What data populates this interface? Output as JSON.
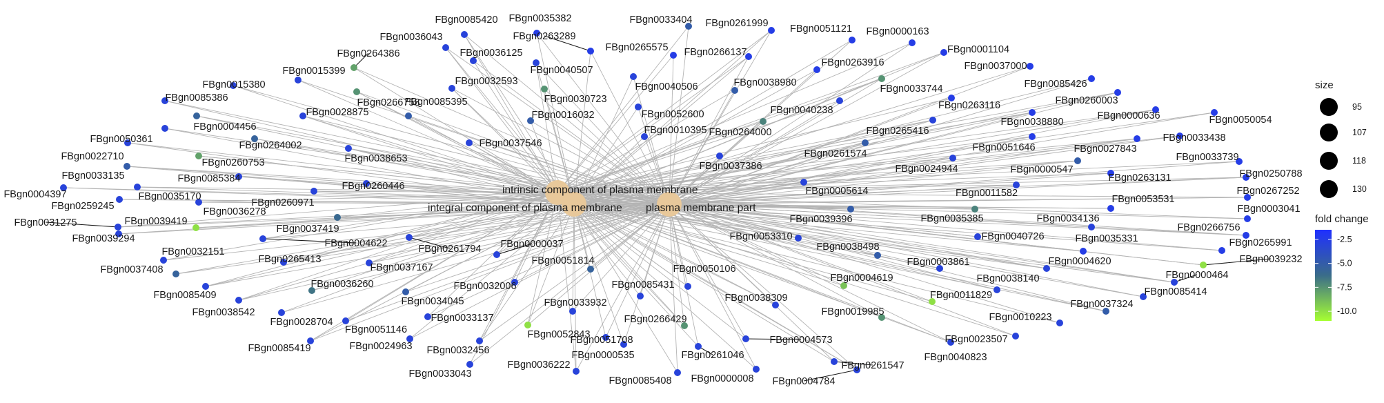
{
  "hubs": [
    {
      "id": "H1",
      "label": "intrinsic component of plasma membrane"
    },
    {
      "id": "H2",
      "label": "integral component of plasma membrane"
    },
    {
      "id": "H3",
      "label": "plasma membrane part"
    }
  ],
  "genes": [
    {
      "id": "g01",
      "label": "FBgn0085420",
      "fold_change": -3.0
    },
    {
      "id": "g02",
      "label": "FBgn0035382",
      "fold_change": -2.5
    },
    {
      "id": "g03",
      "label": "FBgn0033404",
      "fold_change": -5.0
    },
    {
      "id": "g04",
      "label": "FBgn0261999",
      "fold_change": -2.5
    },
    {
      "id": "g05",
      "label": "FBgn0051121",
      "fold_change": -2.5
    },
    {
      "id": "g06",
      "label": "FBgn0000163",
      "fold_change": -2.5
    },
    {
      "id": "g07",
      "label": "FBgn0036043",
      "fold_change": -3.0
    },
    {
      "id": "g08",
      "label": "FBgn0263289",
      "fold_change": -2.5
    },
    {
      "id": "g09",
      "label": "FBgn0265575",
      "fold_change": -2.5
    },
    {
      "id": "g10",
      "label": "FBgn0001104",
      "fold_change": -2.5
    },
    {
      "id": "g11",
      "label": "FBgn0264386",
      "fold_change": -8.0
    },
    {
      "id": "g12",
      "label": "FBgn0036125",
      "fold_change": -3.0
    },
    {
      "id": "g13",
      "label": "FBgn0266137",
      "fold_change": -2.5
    },
    {
      "id": "g14",
      "label": "FBgn0037000",
      "fold_change": -2.5
    },
    {
      "id": "g15",
      "label": "FBgn0015399",
      "fold_change": -3.0
    },
    {
      "id": "g16",
      "label": "FBgn0040507",
      "fold_change": -3.0
    },
    {
      "id": "g17",
      "label": "FBgn0263916",
      "fold_change": -2.5
    },
    {
      "id": "g18",
      "label": "FBgn0015380",
      "fold_change": -3.0
    },
    {
      "id": "g19",
      "label": "FBgn0032593",
      "fold_change": -3.0
    },
    {
      "id": "g20",
      "label": "FBgn0040506",
      "fold_change": -3.0
    },
    {
      "id": "g21",
      "label": "FBgn0038980",
      "fold_change": -5.0
    },
    {
      "id": "g22",
      "label": "FBgn0033744",
      "fold_change": -7.5
    },
    {
      "id": "g23",
      "label": "FBgn0085426",
      "fold_change": -2.5
    },
    {
      "id": "g24",
      "label": "FBgn0085386",
      "fold_change": -3.0
    },
    {
      "id": "g25",
      "label": "FBgn0266758",
      "fold_change": -7.5
    },
    {
      "id": "g26",
      "label": "FBgn0030723",
      "fold_change": -7.5
    },
    {
      "id": "g27",
      "label": "FBgn0263116",
      "fold_change": -2.5
    },
    {
      "id": "g28",
      "label": "FBgn0260003",
      "fold_change": -2.5
    },
    {
      "id": "g29",
      "label": "FBgn0052600",
      "fold_change": -3.0
    },
    {
      "id": "g30",
      "label": "FBgn0040238",
      "fold_change": -3.0
    },
    {
      "id": "g31",
      "label": "FBgn0000636",
      "fold_change": -2.5
    },
    {
      "id": "g32",
      "label": "FBgn0050054",
      "fold_change": -2.5
    },
    {
      "id": "g33",
      "label": "FBgn0004456",
      "fold_change": -5.5
    },
    {
      "id": "g34",
      "label": "FBgn0028875",
      "fold_change": -3.0
    },
    {
      "id": "g35",
      "label": "FBgn0085395",
      "fold_change": -5.0
    },
    {
      "id": "g36",
      "label": "FBgn0016032",
      "fold_change": -5.0
    },
    {
      "id": "g37",
      "label": "FBgn0038880",
      "fold_change": -2.5
    },
    {
      "id": "g38",
      "label": "FBgn0010395",
      "fold_change": -3.0
    },
    {
      "id": "g39",
      "label": "FBgn0264000",
      "fold_change": -7.0
    },
    {
      "id": "g40",
      "label": "FBgn0265416",
      "fold_change": -3.0
    },
    {
      "id": "g41",
      "label": "FBgn0050361",
      "fold_change": -3.0
    },
    {
      "id": "g42",
      "label": "FBgn0264002",
      "fold_change": -5.5
    },
    {
      "id": "g43",
      "label": "FBgn0037546",
      "fold_change": -3.0
    },
    {
      "id": "g44",
      "label": "FBgn0033438",
      "fold_change": -2.5
    },
    {
      "id": "g45",
      "label": "FBgn0051646",
      "fold_change": -2.5
    },
    {
      "id": "g46",
      "label": "FBgn0027843",
      "fold_change": -2.5
    },
    {
      "id": "g47",
      "label": "FBgn0022710",
      "fold_change": -3.0
    },
    {
      "id": "g48",
      "label": "FBgn0260753",
      "fold_change": -8.0
    },
    {
      "id": "g49",
      "label": "FBgn0038653",
      "fold_change": -3.0
    },
    {
      "id": "g50",
      "label": "FBgn0261574",
      "fold_change": -5.0
    },
    {
      "id": "g51",
      "label": "FBgn0033739",
      "fold_change": -2.5
    },
    {
      "id": "g52",
      "label": "FBgn0033135",
      "fold_change": -5.0
    },
    {
      "id": "g53",
      "label": "FBgn0037386",
      "fold_change": -3.0
    },
    {
      "id": "g54",
      "label": "FBgn0024944",
      "fold_change": -3.0
    },
    {
      "id": "g55",
      "label": "FBgn0000547",
      "fold_change": -5.0
    },
    {
      "id": "g56",
      "label": "FBgn0085384",
      "fold_change": -3.0
    },
    {
      "id": "g57",
      "label": "FBgn0263131",
      "fold_change": -2.5
    },
    {
      "id": "g58",
      "label": "FBgn0250788",
      "fold_change": -2.5
    },
    {
      "id": "g59",
      "label": "FBgn0004397",
      "fold_change": -3.0
    },
    {
      "id": "g60",
      "label": "FBgn0035170",
      "fold_change": -3.0
    },
    {
      "id": "g61",
      "label": "FBgn0260446",
      "fold_change": -3.0
    },
    {
      "id": "g62",
      "label": "FBgn0005614",
      "fold_change": -3.0
    },
    {
      "id": "g63",
      "label": "FBgn0011582",
      "fold_change": -3.0
    },
    {
      "id": "g64",
      "label": "FBgn0267252",
      "fold_change": -2.5
    },
    {
      "id": "g65",
      "label": "FBgn0259245",
      "fold_change": -3.0
    },
    {
      "id": "g66",
      "label": "FBgn0260971",
      "fold_change": -3.0
    },
    {
      "id": "g67",
      "label": "FBgn0036278",
      "fold_change": -3.0
    },
    {
      "id": "g68",
      "label": "FBgn0053531",
      "fold_change": -2.5
    },
    {
      "id": "g69",
      "label": "FBgn0003041",
      "fold_change": -2.5
    },
    {
      "id": "g70",
      "label": "FBgn0031275",
      "fold_change": -3.0
    },
    {
      "id": "g71",
      "label": "FBgn0039419",
      "fold_change": -10.0
    },
    {
      "id": "g72",
      "label": "FBgn0037419",
      "fold_change": -6.0
    },
    {
      "id": "g73",
      "label": "FBgn0039396",
      "fold_change": -5.0
    },
    {
      "id": "g74",
      "label": "FBgn0035385",
      "fold_change": -7.0
    },
    {
      "id": "g75",
      "label": "FBgn0034136",
      "fold_change": -3.0
    },
    {
      "id": "g76",
      "label": "FBgn0266756",
      "fold_change": -2.5
    },
    {
      "id": "g77",
      "label": "FBgn0039294",
      "fold_change": -3.0
    },
    {
      "id": "g78",
      "label": "FBgn0004622",
      "fold_change": -3.0
    },
    {
      "id": "g79",
      "label": "FBgn0261794",
      "fold_change": -3.0
    },
    {
      "id": "g80",
      "label": "FBgn0053310",
      "fold_change": -3.0
    },
    {
      "id": "g81",
      "label": "FBgn0040726",
      "fold_change": -3.0
    },
    {
      "id": "g82",
      "label": "FBgn0035331",
      "fold_change": -2.5
    },
    {
      "id": "g83",
      "label": "FBgn0265991",
      "fold_change": -2.5
    },
    {
      "id": "g84",
      "label": "FBgn0032151",
      "fold_change": -3.0
    },
    {
      "id": "g85",
      "label": "FBgn0000037",
      "fold_change": -3.0
    },
    {
      "id": "g86",
      "label": "FBgn0038498",
      "fold_change": -5.0
    },
    {
      "id": "g87",
      "label": "FBgn0039232",
      "fold_change": -10.0
    },
    {
      "id": "g88",
      "label": "FBgn0265413",
      "fold_change": -3.0
    },
    {
      "id": "g89",
      "label": "FBgn0051814",
      "fold_change": -5.5
    },
    {
      "id": "g90",
      "label": "FBgn0003861",
      "fold_change": -3.0
    },
    {
      "id": "g91",
      "label": "FBgn0004620",
      "fold_change": -3.0
    },
    {
      "id": "g92",
      "label": "FBgn0037408",
      "fold_change": -5.5
    },
    {
      "id": "g93",
      "label": "FBgn0037167",
      "fold_change": -3.0
    },
    {
      "id": "g94",
      "label": "FBgn0050106",
      "fold_change": -3.0
    },
    {
      "id": "g95",
      "label": "FBgn0004619",
      "fold_change": -9.0
    },
    {
      "id": "g96",
      "label": "FBgn0038140",
      "fold_change": -3.0
    },
    {
      "id": "g97",
      "label": "FBgn0000464",
      "fold_change": -3.0
    },
    {
      "id": "g98",
      "label": "FBgn0036260",
      "fold_change": -6.5
    },
    {
      "id": "g99",
      "label": "FBgn0032006",
      "fold_change": -3.0
    },
    {
      "id": "g100",
      "label": "FBgn0085409",
      "fold_change": -3.0
    },
    {
      "id": "g101",
      "label": "FBgn0034045",
      "fold_change": -5.0
    },
    {
      "id": "g102",
      "label": "FBgn0085431",
      "fold_change": -3.0
    },
    {
      "id": "g103",
      "label": "FBgn0038309",
      "fold_change": -3.0
    },
    {
      "id": "g104",
      "label": "FBgn0011829",
      "fold_change": -10.0
    },
    {
      "id": "g105",
      "label": "FBgn0085414",
      "fold_change": -3.0
    },
    {
      "id": "g106",
      "label": "FBgn0038542",
      "fold_change": -3.0
    },
    {
      "id": "g107",
      "label": "FBgn0033932",
      "fold_change": -3.0
    },
    {
      "id": "g108",
      "label": "FBgn0019985",
      "fold_change": -7.5
    },
    {
      "id": "g109",
      "label": "FBgn0037324",
      "fold_change": -5.0
    },
    {
      "id": "g110",
      "label": "FBgn0028704",
      "fold_change": -3.0
    },
    {
      "id": "g111",
      "label": "FBgn0033137",
      "fold_change": -3.0
    },
    {
      "id": "g112",
      "label": "FBgn0266429",
      "fold_change": -7.5
    },
    {
      "id": "g113",
      "label": "FBgn0010223",
      "fold_change": -3.0
    },
    {
      "id": "g114",
      "label": "FBgn0051146",
      "fold_change": -3.0
    },
    {
      "id": "g115",
      "label": "FBgn0052843",
      "fold_change": -10.0
    },
    {
      "id": "g116",
      "label": "FBgn0051708",
      "fold_change": -3.0
    },
    {
      "id": "g117",
      "label": "FBgn0004573",
      "fold_change": -3.0
    },
    {
      "id": "g118",
      "label": "FBgn0085419",
      "fold_change": -3.0
    },
    {
      "id": "g119",
      "label": "FBgn0024963",
      "fold_change": -3.0
    },
    {
      "id": "g120",
      "label": "FBgn0023507",
      "fold_change": -3.0
    },
    {
      "id": "g121",
      "label": "FBgn0032456",
      "fold_change": -3.0
    },
    {
      "id": "g122",
      "label": "FBgn0000535",
      "fold_change": -3.0
    },
    {
      "id": "g123",
      "label": "FBgn0261046",
      "fold_change": -3.0
    },
    {
      "id": "g124",
      "label": "FBgn0040823",
      "fold_change": -3.0
    },
    {
      "id": "g125",
      "label": "FBgn0261547",
      "fold_change": -3.0
    },
    {
      "id": "g126",
      "label": "FBgn0033043",
      "fold_change": -3.0
    },
    {
      "id": "g127",
      "label": "FBgn0036222",
      "fold_change": -3.0
    },
    {
      "id": "g128",
      "label": "FBgn0085408",
      "fold_change": -3.0
    },
    {
      "id": "g129",
      "label": "FBgn0000008",
      "fold_change": -3.0
    },
    {
      "id": "g130",
      "label": "FBgn0004784",
      "fold_change": -3.0
    }
  ],
  "legend": {
    "size": {
      "title": "size",
      "entries": [
        {
          "label": "95"
        },
        {
          "label": "107"
        },
        {
          "label": "118"
        },
        {
          "label": "130"
        }
      ]
    },
    "fold_change": {
      "title": "fold change",
      "ticks": [
        {
          "label": "-2.5",
          "value": -2.5
        },
        {
          "label": "-5.0",
          "value": -5.0
        },
        {
          "label": "-7.5",
          "value": -7.5
        },
        {
          "label": "-10.0",
          "value": -10.0
        }
      ],
      "min": -11,
      "max": -1.5
    }
  },
  "colors": {
    "edge": "#b4b4b4",
    "hub": "#e8c89a",
    "scale_high": "#1f30ff",
    "scale_mid": "#3a6c8a",
    "scale_low": "#a6ff32",
    "text": "#1a1a1a"
  }
}
